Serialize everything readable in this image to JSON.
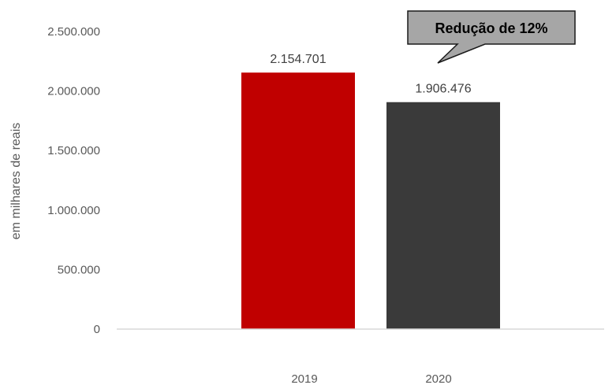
{
  "chart_data": {
    "type": "bar",
    "categories": [
      "2019",
      "2020"
    ],
    "values": [
      2154701,
      1906476
    ],
    "data_labels": [
      "2.154.701",
      "1.906.476"
    ],
    "bar_colors": [
      "#c00000",
      "#3a3a3a"
    ],
    "ylabel": "em milhares de reais",
    "xlabel": "",
    "ylim": [
      0,
      2500000
    ],
    "yticks": [
      0,
      500000,
      1000000,
      1500000,
      2000000,
      2500000
    ],
    "ytick_labels": [
      "0",
      "500.000",
      "1.000.000",
      "1.500.000",
      "2.000.000",
      "2.500.000"
    ],
    "grid": false,
    "legend": "none",
    "annotation": "Redução de 12%"
  }
}
